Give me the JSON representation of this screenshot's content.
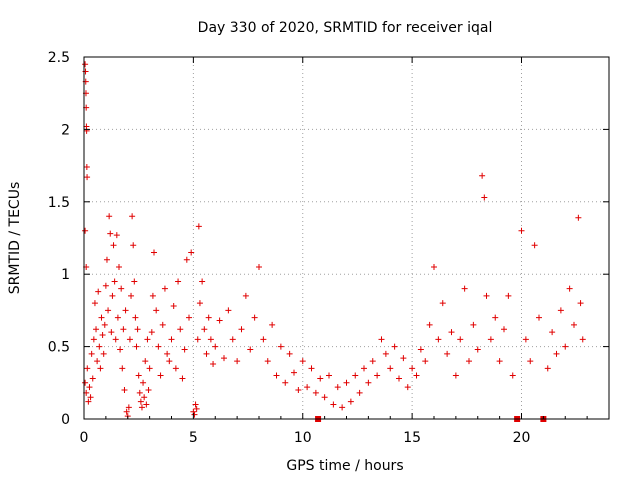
{
  "chart_data": {
    "type": "scatter",
    "title": "Day 330 of 2020, SRMTID for receiver iqal",
    "xlabel": "GPS time / hours",
    "ylabel": "SRMTID / TECUs",
    "xlim": [
      0,
      24
    ],
    "ylim": [
      0,
      2.5
    ],
    "x_ticks": [
      0,
      5,
      10,
      15,
      20
    ],
    "x_tick_labels": [
      "0",
      "5",
      "10",
      "15",
      "20"
    ],
    "y_ticks": [
      0,
      0.5,
      1,
      1.5,
      2,
      2.5
    ],
    "y_tick_labels": [
      "0",
      "0.5",
      "1",
      "1.5",
      "2",
      "2.5"
    ],
    "grid": true,
    "legend": "none",
    "marker": "plus",
    "series": [
      {
        "name": "SRMTID",
        "color": "#e00000",
        "points": [
          [
            0.05,
            2.45
          ],
          [
            0.07,
            2.4
          ],
          [
            0.08,
            2.33
          ],
          [
            0.09,
            2.25
          ],
          [
            0.1,
            2.15
          ],
          [
            0.11,
            2.02
          ],
          [
            0.12,
            1.99
          ],
          [
            0.13,
            1.74
          ],
          [
            0.14,
            1.67
          ],
          [
            0.05,
            1.3
          ],
          [
            0.1,
            1.05
          ],
          [
            0.05,
            0.25
          ],
          [
            0.1,
            0.18
          ],
          [
            0.15,
            0.35
          ],
          [
            0.2,
            0.12
          ],
          [
            0.25,
            0.22
          ],
          [
            0.3,
            0.15
          ],
          [
            0.35,
            0.45
          ],
          [
            0.4,
            0.28
          ],
          [
            0.45,
            0.55
          ],
          [
            0.5,
            0.8
          ],
          [
            0.55,
            0.62
          ],
          [
            0.6,
            0.4
          ],
          [
            0.65,
            0.88
          ],
          [
            0.7,
            0.5
          ],
          [
            0.75,
            0.35
          ],
          [
            0.8,
            0.7
          ],
          [
            0.85,
            0.58
          ],
          [
            0.9,
            0.45
          ],
          [
            0.95,
            0.65
          ],
          [
            1.0,
            0.92
          ],
          [
            1.05,
            1.1
          ],
          [
            1.1,
            0.75
          ],
          [
            1.15,
            1.4
          ],
          [
            1.2,
            1.28
          ],
          [
            1.25,
            0.6
          ],
          [
            1.3,
            0.85
          ],
          [
            1.35,
            1.2
          ],
          [
            1.4,
            0.95
          ],
          [
            1.45,
            0.55
          ],
          [
            1.5,
            1.27
          ],
          [
            1.55,
            0.7
          ],
          [
            1.6,
            1.05
          ],
          [
            1.65,
            0.48
          ],
          [
            1.7,
            0.9
          ],
          [
            1.75,
            0.35
          ],
          [
            1.8,
            0.62
          ],
          [
            1.85,
            0.2
          ],
          [
            1.9,
            0.75
          ],
          [
            1.95,
            0.05
          ],
          [
            2.0,
            0.02
          ],
          [
            2.05,
            0.08
          ],
          [
            2.1,
            0.55
          ],
          [
            2.15,
            0.85
          ],
          [
            2.2,
            1.4
          ],
          [
            2.25,
            1.2
          ],
          [
            2.3,
            0.95
          ],
          [
            2.35,
            0.7
          ],
          [
            2.4,
            0.5
          ],
          [
            2.45,
            0.62
          ],
          [
            2.5,
            0.3
          ],
          [
            2.55,
            0.18
          ],
          [
            2.6,
            0.12
          ],
          [
            2.65,
            0.08
          ],
          [
            2.7,
            0.25
          ],
          [
            2.75,
            0.15
          ],
          [
            2.8,
            0.4
          ],
          [
            2.85,
            0.1
          ],
          [
            2.9,
            0.55
          ],
          [
            2.95,
            0.2
          ],
          [
            3.0,
            0.35
          ],
          [
            3.1,
            0.6
          ],
          [
            3.15,
            0.85
          ],
          [
            3.2,
            1.15
          ],
          [
            3.3,
            0.75
          ],
          [
            3.4,
            0.5
          ],
          [
            3.5,
            0.3
          ],
          [
            3.6,
            0.65
          ],
          [
            3.7,
            0.9
          ],
          [
            3.8,
            0.45
          ],
          [
            3.9,
            0.4
          ],
          [
            4.0,
            0.55
          ],
          [
            4.1,
            0.78
          ],
          [
            4.2,
            0.35
          ],
          [
            4.3,
            0.95
          ],
          [
            4.4,
            0.62
          ],
          [
            4.5,
            0.28
          ],
          [
            4.6,
            0.48
          ],
          [
            4.7,
            1.1
          ],
          [
            4.8,
            0.7
          ],
          [
            4.9,
            1.15
          ],
          [
            5.0,
            0.05
          ],
          [
            5.05,
            0.03
          ],
          [
            5.1,
            0.1
          ],
          [
            5.15,
            0.07
          ],
          [
            5.2,
            0.55
          ],
          [
            5.25,
            1.33
          ],
          [
            5.3,
            0.8
          ],
          [
            5.4,
            0.95
          ],
          [
            5.5,
            0.62
          ],
          [
            5.6,
            0.45
          ],
          [
            5.7,
            0.7
          ],
          [
            5.8,
            0.55
          ],
          [
            5.9,
            0.38
          ],
          [
            6.0,
            0.5
          ],
          [
            6.2,
            0.68
          ],
          [
            6.4,
            0.42
          ],
          [
            6.6,
            0.75
          ],
          [
            6.8,
            0.55
          ],
          [
            7.0,
            0.4
          ],
          [
            7.2,
            0.62
          ],
          [
            7.4,
            0.85
          ],
          [
            7.6,
            0.48
          ],
          [
            7.8,
            0.7
          ],
          [
            8.0,
            1.05
          ],
          [
            8.2,
            0.55
          ],
          [
            8.4,
            0.4
          ],
          [
            8.6,
            0.65
          ],
          [
            8.8,
            0.3
          ],
          [
            9.0,
            0.5
          ],
          [
            9.2,
            0.25
          ],
          [
            9.4,
            0.45
          ],
          [
            9.6,
            0.32
          ],
          [
            9.8,
            0.2
          ],
          [
            10.0,
            0.4
          ],
          [
            10.2,
            0.22
          ],
          [
            10.4,
            0.35
          ],
          [
            10.6,
            0.18
          ],
          [
            10.7,
            0.0
          ],
          [
            10.8,
            0.28
          ],
          [
            11.0,
            0.15
          ],
          [
            11.2,
            0.3
          ],
          [
            11.4,
            0.1
          ],
          [
            11.6,
            0.22
          ],
          [
            11.8,
            0.08
          ],
          [
            12.0,
            0.25
          ],
          [
            12.2,
            0.12
          ],
          [
            12.4,
            0.3
          ],
          [
            12.6,
            0.18
          ],
          [
            12.8,
            0.35
          ],
          [
            13.0,
            0.25
          ],
          [
            13.2,
            0.4
          ],
          [
            13.4,
            0.3
          ],
          [
            13.6,
            0.55
          ],
          [
            13.8,
            0.45
          ],
          [
            14.0,
            0.35
          ],
          [
            14.2,
            0.5
          ],
          [
            14.4,
            0.28
          ],
          [
            14.6,
            0.42
          ],
          [
            14.8,
            0.22
          ],
          [
            15.0,
            0.35
          ],
          [
            15.2,
            0.3
          ],
          [
            15.4,
            0.48
          ],
          [
            15.6,
            0.4
          ],
          [
            15.8,
            0.65
          ],
          [
            16.0,
            1.05
          ],
          [
            16.2,
            0.55
          ],
          [
            16.4,
            0.8
          ],
          [
            16.6,
            0.45
          ],
          [
            16.8,
            0.6
          ],
          [
            17.0,
            0.3
          ],
          [
            17.2,
            0.55
          ],
          [
            17.4,
            0.9
          ],
          [
            17.6,
            0.4
          ],
          [
            17.8,
            0.65
          ],
          [
            18.0,
            0.48
          ],
          [
            18.2,
            1.68
          ],
          [
            18.3,
            1.53
          ],
          [
            18.4,
            0.85
          ],
          [
            18.6,
            0.55
          ],
          [
            18.8,
            0.7
          ],
          [
            19.0,
            0.4
          ],
          [
            19.2,
            0.62
          ],
          [
            19.4,
            0.85
          ],
          [
            19.6,
            0.3
          ],
          [
            19.8,
            0.0
          ],
          [
            20.0,
            1.3
          ],
          [
            20.2,
            0.55
          ],
          [
            20.4,
            0.4
          ],
          [
            20.6,
            1.2
          ],
          [
            20.8,
            0.7
          ],
          [
            21.0,
            0.0
          ],
          [
            21.2,
            0.35
          ],
          [
            21.4,
            0.6
          ],
          [
            21.6,
            0.45
          ],
          [
            21.8,
            0.75
          ],
          [
            22.0,
            0.5
          ],
          [
            22.2,
            0.9
          ],
          [
            22.4,
            0.65
          ],
          [
            22.6,
            1.39
          ],
          [
            22.7,
            0.8
          ],
          [
            22.8,
            0.55
          ]
        ]
      }
    ]
  }
}
